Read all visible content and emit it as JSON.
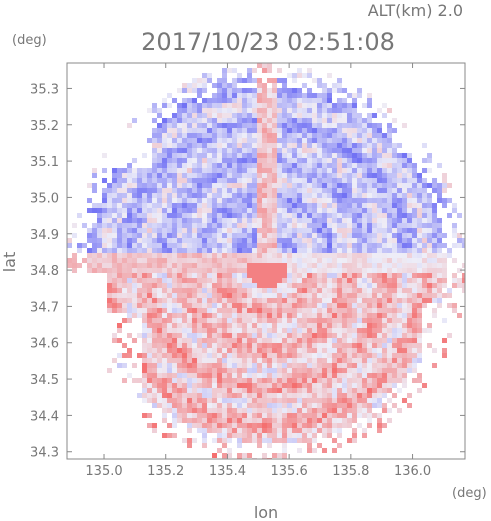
{
  "header": {
    "altitude": "ALT(km) 2.0",
    "timestamp": "2017/10/23 02:51:08",
    "y_unit": "(deg)",
    "x_unit": "(deg)"
  },
  "colors": {
    "positive": "#f47a7a",
    "negative": "#7a7af4",
    "neutral": "#ebebf5",
    "axis": "#888888"
  },
  "chart_data": {
    "type": "heatmap",
    "title": "2017/10/23 02:51:08",
    "subtitle": "ALT(km) 2.0",
    "xlabel": "lon",
    "ylabel": "lat",
    "xlim": [
      134.88,
      136.17
    ],
    "ylim": [
      34.28,
      35.37
    ],
    "x_ticks": [
      135.0,
      135.2,
      135.4,
      135.6,
      135.8,
      136.0
    ],
    "x_tick_labels": [
      "135.0",
      "135.2",
      "135.4",
      "135.6",
      "135.8",
      "136.0"
    ],
    "y_ticks": [
      34.3,
      34.4,
      34.5,
      34.6,
      34.7,
      34.8,
      34.9,
      35.0,
      35.1,
      35.2,
      35.3
    ],
    "y_tick_labels": [
      "34.3",
      "34.4",
      "34.5",
      "34.6",
      "34.7",
      "34.8",
      "34.9",
      "35.0",
      "35.1",
      "35.2",
      "35.3"
    ],
    "radar_center": {
      "lon": 135.52,
      "lat": 34.82
    },
    "radar_range_deg": 0.55,
    "colorscale": "diverging red-white-blue",
    "grid": false,
    "legend": "none"
  }
}
